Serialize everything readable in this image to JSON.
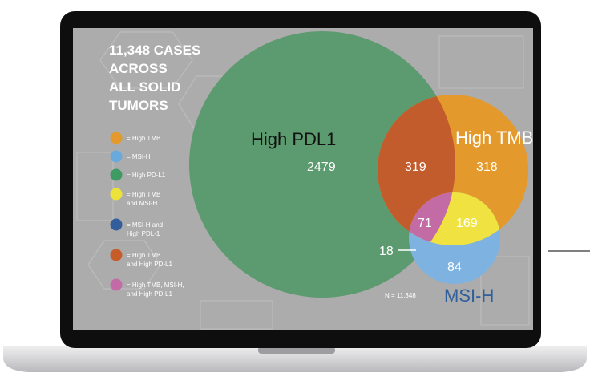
{
  "headline": [
    "11,348 CASES",
    "ACROSS",
    "ALL SOLID",
    "TUMORS"
  ],
  "legend": [
    {
      "lines": [
        "= High TMB"
      ],
      "color": "#e3992b"
    },
    {
      "lines": [
        "= MSI-H"
      ],
      "color": "#69a9dc"
    },
    {
      "lines": [
        "= High PD-L1"
      ],
      "color": "#3f9a64"
    },
    {
      "lines": [
        "= High TMB",
        "and MSI-H"
      ],
      "color": "#ece33a"
    },
    {
      "lines": [
        "= MSI-H and",
        "High PDL-1"
      ],
      "color": "#345e9b"
    },
    {
      "lines": [
        "= High TMB",
        "and High PD-L1"
      ],
      "color": "#c65c2a"
    },
    {
      "lines": [
        "= High TMB, MSI-H,",
        "and High PD-L1"
      ],
      "color": "#c36ba6"
    }
  ],
  "sets": {
    "pdl1": {
      "label": "High PDL1",
      "color": "#5c9a6f"
    },
    "tmb": {
      "label": "High TMB",
      "color": "#e3992b"
    },
    "msi": {
      "label": "MSI-H",
      "color": "#7eb2e0"
    }
  },
  "counts": {
    "pdl1_only": "2479",
    "tmb_pdl1": "319",
    "tmb_only": "318",
    "all_three": "71",
    "tmb_msi": "169",
    "msi_pdl1": "18",
    "msi_only": "84"
  },
  "n_label": "N = 11,348",
  "colors": {
    "screen_bg": "#acacac",
    "bezel": "#111111",
    "laptop_base": "#d9d9db",
    "overlap_tmb_pdl1": "#c35c2d",
    "overlap_tmb_msi": "#f0e240",
    "overlap_all": "#c26ba5"
  }
}
